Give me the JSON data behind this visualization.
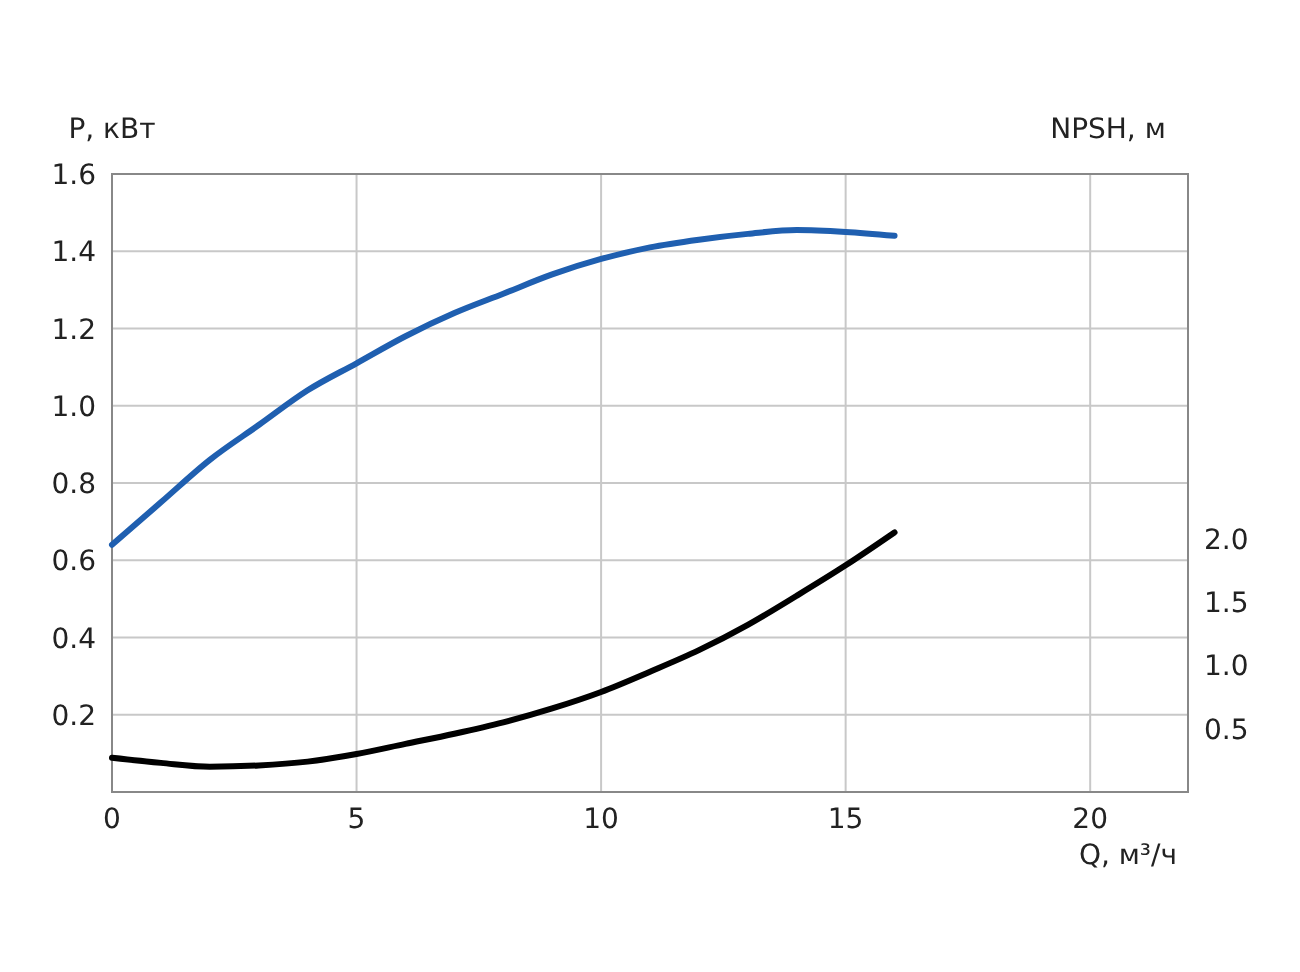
{
  "chart_data": {
    "type": "line",
    "xlabel": "Q, м³/ч",
    "ylabel": "P, кВт",
    "y2label": "NPSH, м",
    "xlim": [
      0,
      22
    ],
    "xticks": [
      0,
      5,
      10,
      15,
      20
    ],
    "ylim": [
      0,
      1.6
    ],
    "yticks": [
      0.2,
      0.4,
      0.6,
      0.8,
      {
        "value": 1,
        "label": "1.0"
      },
      1.2,
      1.4,
      1.6
    ],
    "y2lim": [
      0,
      4.88
    ],
    "y2ticks": [
      0.5,
      {
        "value": 1,
        "label": "1.0"
      },
      1.5,
      {
        "value": 2,
        "label": "2.0"
      }
    ],
    "grid": true,
    "series": [
      {
        "color": "#1f5fb0",
        "x": [
          0,
          1,
          2,
          3,
          4,
          5,
          6,
          7,
          8,
          9,
          10,
          11,
          12,
          13,
          14,
          15,
          16
        ],
        "values": [
          0.64,
          0.75,
          0.86,
          0.95,
          1.04,
          1.11,
          1.18,
          1.24,
          1.29,
          1.34,
          1.38,
          1.41,
          1.43,
          1.445,
          1.455,
          1.45,
          1.44
        ]
      },
      {
        "color": "#000000",
        "axis": "y2",
        "x": [
          0,
          1,
          2,
          3,
          4,
          5,
          6,
          7,
          8,
          9,
          10,
          11,
          12,
          13,
          14,
          15,
          16
        ],
        "values": [
          0.27,
          0.23,
          0.2,
          0.21,
          0.24,
          0.3,
          0.38,
          0.46,
          0.55,
          0.66,
          0.79,
          0.95,
          1.12,
          1.32,
          1.55,
          1.79,
          2.05
        ]
      }
    ]
  }
}
